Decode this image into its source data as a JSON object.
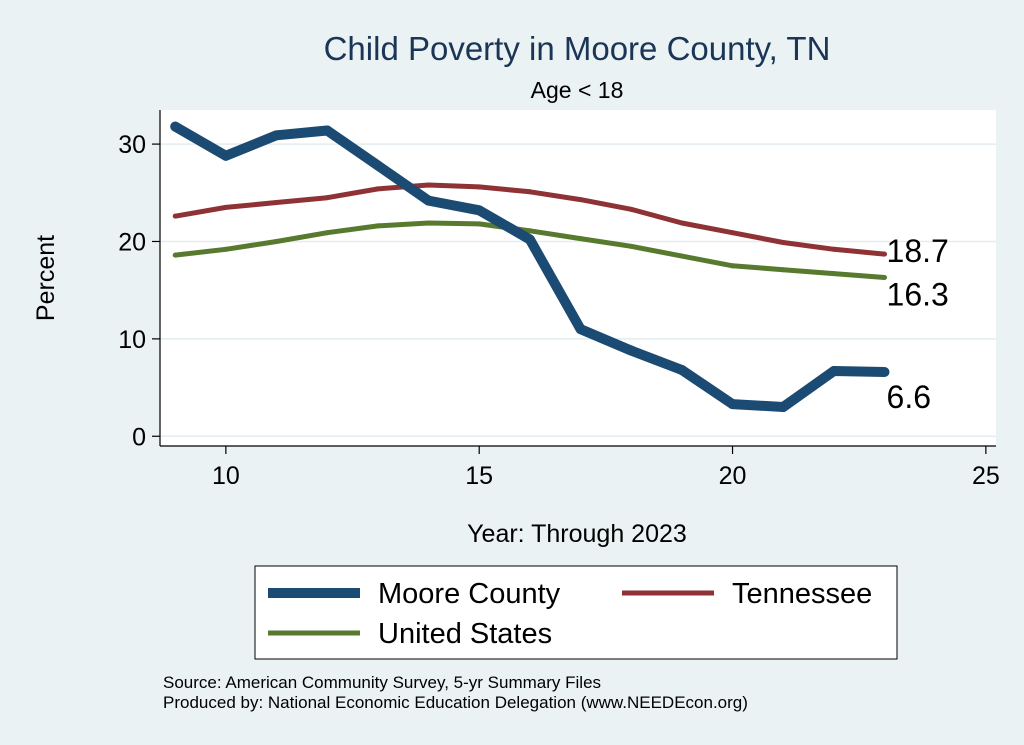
{
  "chart_data": {
    "type": "line",
    "title": "Child Poverty in Moore County, TN",
    "subtitle": "Age < 18",
    "xlabel": "Year: Through 2023",
    "ylabel": "Percent",
    "xlim": [
      8.7,
      25.2
    ],
    "ylim": [
      -1,
      33.5
    ],
    "xticks": [
      10,
      15,
      20,
      25
    ],
    "yticks": [
      0,
      10,
      20,
      30
    ],
    "grid": true,
    "legend_position": "bottom",
    "series": [
      {
        "name": "Moore County",
        "color": "#1b4a72",
        "end_label": "6.6",
        "x": [
          9,
          10,
          11,
          12,
          13,
          14,
          15,
          16,
          17,
          18,
          19,
          20,
          21,
          22,
          23
        ],
        "y": [
          31.8,
          28.8,
          30.9,
          31.4,
          27.8,
          24.2,
          23.2,
          20.2,
          11.0,
          8.8,
          6.8,
          3.3,
          3.0,
          6.7,
          6.6
        ]
      },
      {
        "name": "Tennessee",
        "color": "#8f3236",
        "end_label": "18.7",
        "x": [
          9,
          10,
          11,
          12,
          13,
          14,
          15,
          16,
          17,
          18,
          19,
          20,
          21,
          22,
          23
        ],
        "y": [
          22.6,
          23.5,
          24.0,
          24.5,
          25.4,
          25.8,
          25.6,
          25.1,
          24.3,
          23.3,
          21.9,
          20.9,
          19.9,
          19.2,
          18.7
        ]
      },
      {
        "name": "United States",
        "color": "#587a2f",
        "end_label": "16.3",
        "x": [
          9,
          10,
          11,
          12,
          13,
          14,
          15,
          16,
          17,
          18,
          19,
          20,
          21,
          22,
          23
        ],
        "y": [
          18.6,
          19.2,
          20.0,
          20.9,
          21.6,
          21.9,
          21.8,
          21.1,
          20.3,
          19.5,
          18.5,
          17.5,
          17.1,
          16.7,
          16.3
        ]
      }
    ]
  },
  "source_lines": [
    "Source: American Community Survey, 5-yr Summary Files",
    "Produced by: National Economic Education Delegation (www.NEEDEcon.org)"
  ]
}
